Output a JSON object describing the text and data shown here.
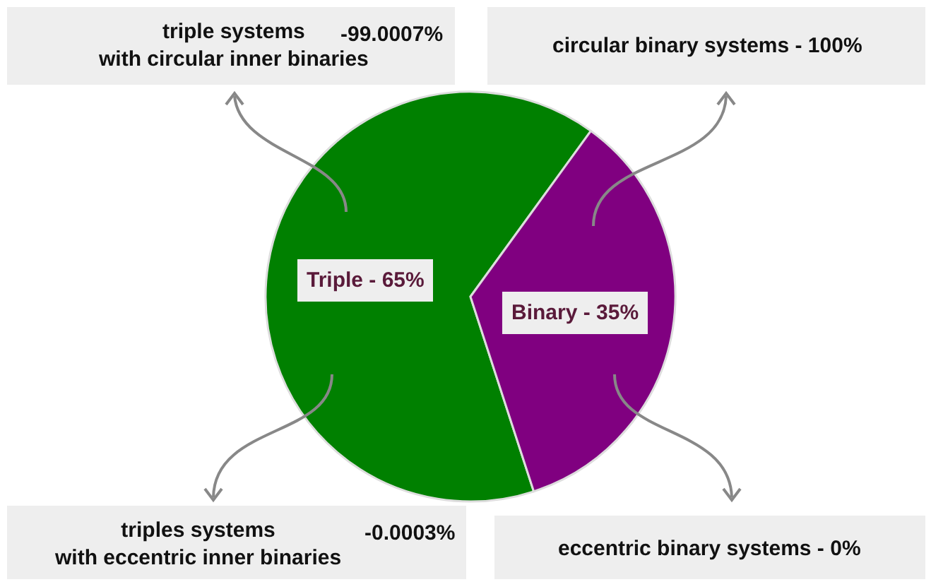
{
  "chart_data": {
    "type": "pie",
    "categories": [
      "Triple - 65%",
      "Binary - 35%"
    ],
    "values": [
      65,
      35
    ],
    "colors": [
      "#008000",
      "#800080"
    ],
    "annotations": [
      "triple systems\nwith circular inner binaries",
      "-99.0007%",
      "circular binary systems - 100%",
      "triples systems\nwith eccentric inner binaries",
      "-0.0003%",
      "eccentric binary systems - 0%"
    ]
  }
}
